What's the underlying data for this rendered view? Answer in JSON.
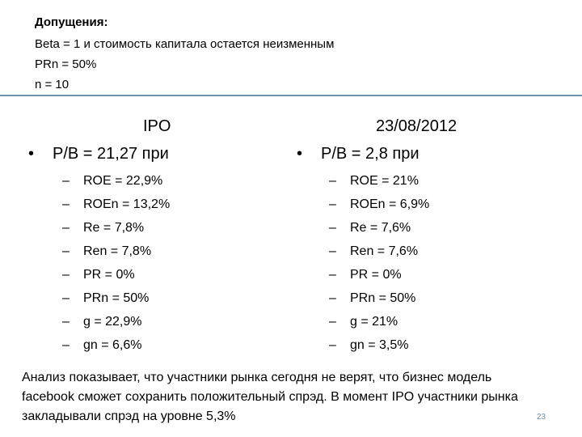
{
  "assumptions": {
    "title": "Допущения:",
    "lines": [
      "Beta = 1 и стоимость капитала остается неизменным",
      "PRn = 50%",
      "n = 10"
    ]
  },
  "left": {
    "title": "IPO",
    "bullet_marker": "•",
    "bullet": "P/B = 21,27 при",
    "dash": "–",
    "items": [
      "ROE = 22,9%",
      "ROEn = 13,2%",
      "Re = 7,8%",
      "Ren = 7,8%",
      "PR = 0%",
      "PRn = 50%",
      "g = 22,9%",
      "gn = 6,6%"
    ]
  },
  "right": {
    "title": "23/08/2012",
    "bullet_marker": "•",
    "bullet": "P/B = 2,8 при",
    "dash": "–",
    "items": [
      "ROE = 21%",
      "ROEn = 6,9%",
      "Re = 7,6%",
      "Ren = 7,6%",
      "PR = 0%",
      "PRn = 50%",
      "g = 21%",
      "gn = 3,5%"
    ]
  },
  "conclusion": "Анализ показывает, что участники рынка сегодня не верят, что бизнес модель facebook сможет сохранить положительный спрэд. В момент IPO участники рынка закладывали спрэд на уровне 5,3%",
  "page_number": "23",
  "colors": {
    "divider": "#6f8fa6"
  }
}
